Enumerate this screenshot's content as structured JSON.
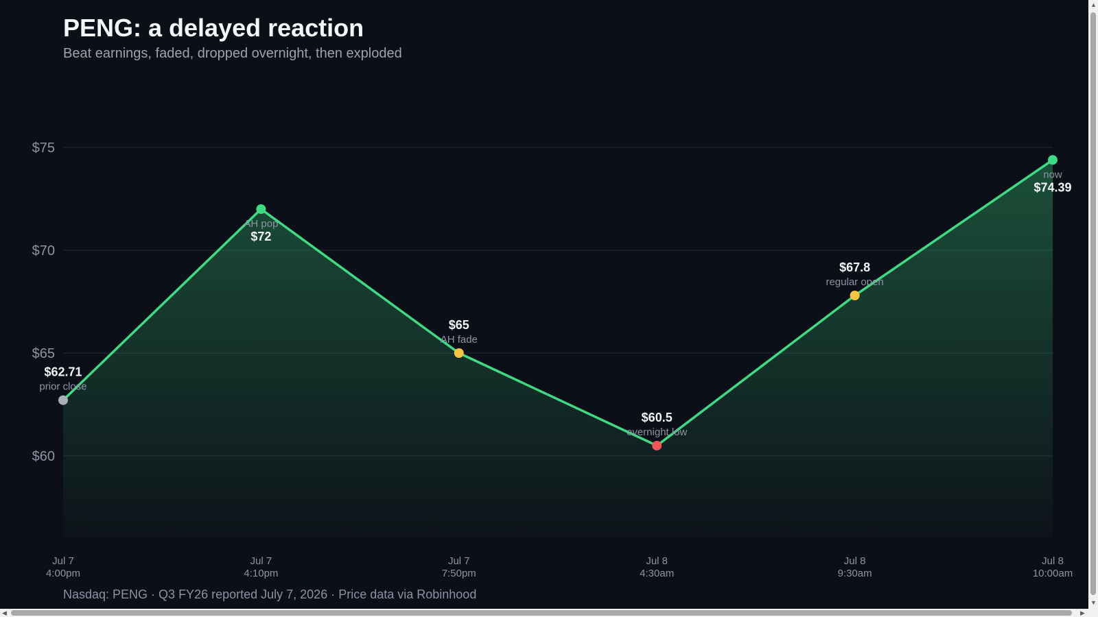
{
  "header": {
    "title": "PENG: a delayed reaction",
    "subtitle": "Beat earnings, faded, dropped overnight, then exploded"
  },
  "footer": {
    "text": "Nasdaq: PENG · Q3 FY26 reported July 7, 2026 · Price data via Robinhood"
  },
  "colors": {
    "background": "#0c0f17",
    "line": "#3ddc84",
    "grid": "#232833",
    "neutral_point": "#a9afba",
    "up_point": "#3ddc84",
    "mid_point": "#f5c542",
    "low_point": "#f05454"
  },
  "chart_data": {
    "type": "area",
    "title": "PENG: a delayed reaction",
    "subtitle": "Beat earnings, faded, dropped overnight, then exploded",
    "ylim": [
      56,
      75.5
    ],
    "y_ticks": [
      {
        "value": 60,
        "label": "$60"
      },
      {
        "value": 65,
        "label": "$65"
      },
      {
        "value": 70,
        "label": "$70"
      },
      {
        "value": 75,
        "label": "$75"
      }
    ],
    "grid": true,
    "legend": "none",
    "points": [
      {
        "date": "Jul 7",
        "time": "4:00pm",
        "value": 62.71,
        "value_label": "$62.71",
        "annotation": "prior close",
        "label_pos": "above",
        "color_key": "neutral_point"
      },
      {
        "date": "Jul 7",
        "time": "4:10pm",
        "value": 72,
        "value_label": "$72",
        "annotation": "AH pop",
        "label_pos": "below",
        "color_key": "up_point"
      },
      {
        "date": "Jul 7",
        "time": "7:50pm",
        "value": 65,
        "value_label": "$65",
        "annotation": "AH fade",
        "label_pos": "above",
        "color_key": "mid_point"
      },
      {
        "date": "Jul 8",
        "time": "4:30am",
        "value": 60.5,
        "value_label": "$60.5",
        "annotation": "overnight low",
        "label_pos": "above",
        "color_key": "low_point"
      },
      {
        "date": "Jul 8",
        "time": "9:30am",
        "value": 67.8,
        "value_label": "$67.8",
        "annotation": "regular open",
        "label_pos": "above",
        "color_key": "mid_point"
      },
      {
        "date": "Jul 8",
        "time": "10:00am",
        "value": 74.39,
        "value_label": "$74.39",
        "annotation": "now",
        "label_pos": "below",
        "color_key": "up_point"
      }
    ]
  }
}
